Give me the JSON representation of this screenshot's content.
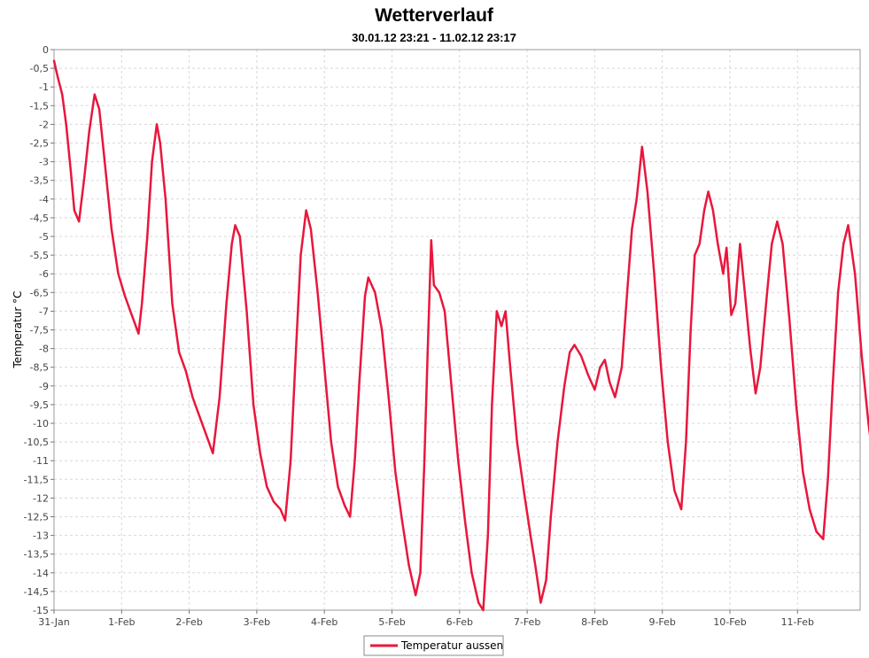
{
  "chart_data": {
    "type": "line",
    "title": "Wetterverlauf",
    "subtitle": "30.01.12 23:21 - 11.02.12 23:17",
    "xlabel": "",
    "ylabel": "Temperatur °C",
    "ylim": [
      -15,
      0
    ],
    "xlim": [
      0,
      12
    ],
    "grid": true,
    "legend_position": "bottom-center",
    "y_ticks": [
      "0",
      "-0,5",
      "-1",
      "-1,5",
      "-2",
      "-2,5",
      "-3",
      "-3,5",
      "-4",
      "-4,5",
      "-5",
      "-5,5",
      "-6",
      "-6,5",
      "-7",
      "-7,5",
      "-8",
      "-8,5",
      "-9",
      "-9,5",
      "-10",
      "-10,5",
      "-11",
      "-11,5",
      "-12",
      "-12,5",
      "-13",
      "-13,5",
      "-14",
      "-14,5",
      "-15"
    ],
    "x_ticks": [
      "31-Jan",
      "1-Feb",
      "2-Feb",
      "3-Feb",
      "4-Feb",
      "5-Feb",
      "6-Feb",
      "7-Feb",
      "8-Feb",
      "9-Feb",
      "10-Feb",
      "11-Feb"
    ],
    "series": [
      {
        "name": "Temperatur aussen",
        "color": "#e8173c",
        "points": [
          [
            0.0,
            -0.3
          ],
          [
            0.05,
            -0.7
          ],
          [
            0.12,
            -1.2
          ],
          [
            0.18,
            -2.0
          ],
          [
            0.25,
            -3.3
          ],
          [
            0.3,
            -4.3
          ],
          [
            0.37,
            -4.6
          ],
          [
            0.45,
            -3.4
          ],
          [
            0.52,
            -2.2
          ],
          [
            0.6,
            -1.2
          ],
          [
            0.67,
            -1.6
          ],
          [
            0.75,
            -3.0
          ],
          [
            0.85,
            -4.8
          ],
          [
            0.95,
            -6.0
          ],
          [
            1.05,
            -6.6
          ],
          [
            1.15,
            -7.1
          ],
          [
            1.25,
            -7.6
          ],
          [
            1.3,
            -6.8
          ],
          [
            1.38,
            -5.0
          ],
          [
            1.45,
            -3.0
          ],
          [
            1.52,
            -2.0
          ],
          [
            1.57,
            -2.5
          ],
          [
            1.65,
            -4.0
          ],
          [
            1.75,
            -6.8
          ],
          [
            1.85,
            -8.1
          ],
          [
            1.95,
            -8.6
          ],
          [
            2.05,
            -9.3
          ],
          [
            2.15,
            -9.8
          ],
          [
            2.25,
            -10.3
          ],
          [
            2.35,
            -10.8
          ],
          [
            2.45,
            -9.3
          ],
          [
            2.55,
            -6.8
          ],
          [
            2.63,
            -5.2
          ],
          [
            2.68,
            -4.7
          ],
          [
            2.75,
            -5.0
          ],
          [
            2.85,
            -7.0
          ],
          [
            2.95,
            -9.5
          ],
          [
            3.05,
            -10.8
          ],
          [
            3.15,
            -11.7
          ],
          [
            3.25,
            -12.1
          ],
          [
            3.35,
            -12.3
          ],
          [
            3.42,
            -12.6
          ],
          [
            3.5,
            -11.0
          ],
          [
            3.58,
            -8.0
          ],
          [
            3.65,
            -5.5
          ],
          [
            3.73,
            -4.3
          ],
          [
            3.8,
            -4.8
          ],
          [
            3.9,
            -6.5
          ],
          [
            4.0,
            -8.5
          ],
          [
            4.1,
            -10.5
          ],
          [
            4.2,
            -11.7
          ],
          [
            4.3,
            -12.2
          ],
          [
            4.38,
            -12.5
          ],
          [
            4.45,
            -11.0
          ],
          [
            4.52,
            -8.8
          ],
          [
            4.6,
            -6.6
          ],
          [
            4.65,
            -6.1
          ],
          [
            4.75,
            -6.5
          ],
          [
            4.85,
            -7.5
          ],
          [
            4.95,
            -9.3
          ],
          [
            5.05,
            -11.3
          ],
          [
            5.15,
            -12.6
          ],
          [
            5.25,
            -13.8
          ],
          [
            5.35,
            -14.6
          ],
          [
            5.42,
            -14.0
          ],
          [
            5.48,
            -11.0
          ],
          [
            5.53,
            -8.0
          ],
          [
            5.58,
            -5.1
          ],
          [
            5.62,
            -6.3
          ],
          [
            5.7,
            -6.5
          ],
          [
            5.78,
            -7.0
          ],
          [
            5.88,
            -9.0
          ],
          [
            5.98,
            -11.0
          ],
          [
            6.08,
            -12.6
          ],
          [
            6.18,
            -14.0
          ],
          [
            6.28,
            -14.8
          ],
          [
            6.35,
            -15.0
          ],
          [
            6.42,
            -13.0
          ],
          [
            6.48,
            -9.5
          ],
          [
            6.55,
            -7.0
          ],
          [
            6.62,
            -7.4
          ],
          [
            6.68,
            -7.0
          ],
          [
            6.75,
            -8.5
          ],
          [
            6.85,
            -10.5
          ],
          [
            6.95,
            -11.8
          ],
          [
            7.05,
            -13.0
          ],
          [
            7.12,
            -13.8
          ],
          [
            7.2,
            -14.8
          ],
          [
            7.28,
            -14.2
          ],
          [
            7.35,
            -12.5
          ],
          [
            7.45,
            -10.5
          ],
          [
            7.55,
            -9.0
          ],
          [
            7.63,
            -8.1
          ],
          [
            7.7,
            -7.9
          ],
          [
            7.8,
            -8.2
          ],
          [
            7.9,
            -8.7
          ],
          [
            8.0,
            -9.1
          ],
          [
            8.08,
            -8.5
          ],
          [
            8.15,
            -8.3
          ],
          [
            8.22,
            -8.9
          ],
          [
            8.3,
            -9.3
          ],
          [
            8.4,
            -8.5
          ],
          [
            8.48,
            -6.5
          ],
          [
            8.55,
            -4.8
          ],
          [
            8.62,
            -4.0
          ],
          [
            8.7,
            -2.6
          ],
          [
            8.78,
            -3.8
          ],
          [
            8.88,
            -6.0
          ],
          [
            8.98,
            -8.5
          ],
          [
            9.08,
            -10.5
          ],
          [
            9.18,
            -11.8
          ],
          [
            9.28,
            -12.3
          ],
          [
            9.35,
            -10.5
          ],
          [
            9.42,
            -7.5
          ],
          [
            9.48,
            -5.5
          ],
          [
            9.55,
            -5.2
          ],
          [
            9.62,
            -4.3
          ],
          [
            9.68,
            -3.8
          ],
          [
            9.75,
            -4.3
          ],
          [
            9.82,
            -5.2
          ],
          [
            9.9,
            -6.0
          ],
          [
            9.95,
            -5.3
          ],
          [
            10.02,
            -7.1
          ],
          [
            10.08,
            -6.8
          ],
          [
            10.15,
            -5.2
          ],
          [
            10.22,
            -6.5
          ],
          [
            10.3,
            -8.0
          ],
          [
            10.38,
            -9.2
          ],
          [
            10.45,
            -8.5
          ],
          [
            10.55,
            -6.5
          ],
          [
            10.62,
            -5.2
          ],
          [
            10.7,
            -4.6
          ],
          [
            10.78,
            -5.2
          ],
          [
            10.88,
            -7.2
          ],
          [
            10.98,
            -9.5
          ],
          [
            11.08,
            -11.3
          ],
          [
            11.18,
            -12.3
          ],
          [
            11.28,
            -12.9
          ],
          [
            11.38,
            -13.1
          ],
          [
            11.45,
            -11.5
          ],
          [
            11.52,
            -9.0
          ],
          [
            11.6,
            -6.5
          ],
          [
            11.68,
            -5.2
          ],
          [
            11.75,
            -4.7
          ],
          [
            11.85,
            -6.0
          ],
          [
            11.95,
            -8.2
          ],
          [
            12.05,
            -10.0
          ],
          [
            12.12,
            -11.0
          ]
        ]
      }
    ]
  }
}
